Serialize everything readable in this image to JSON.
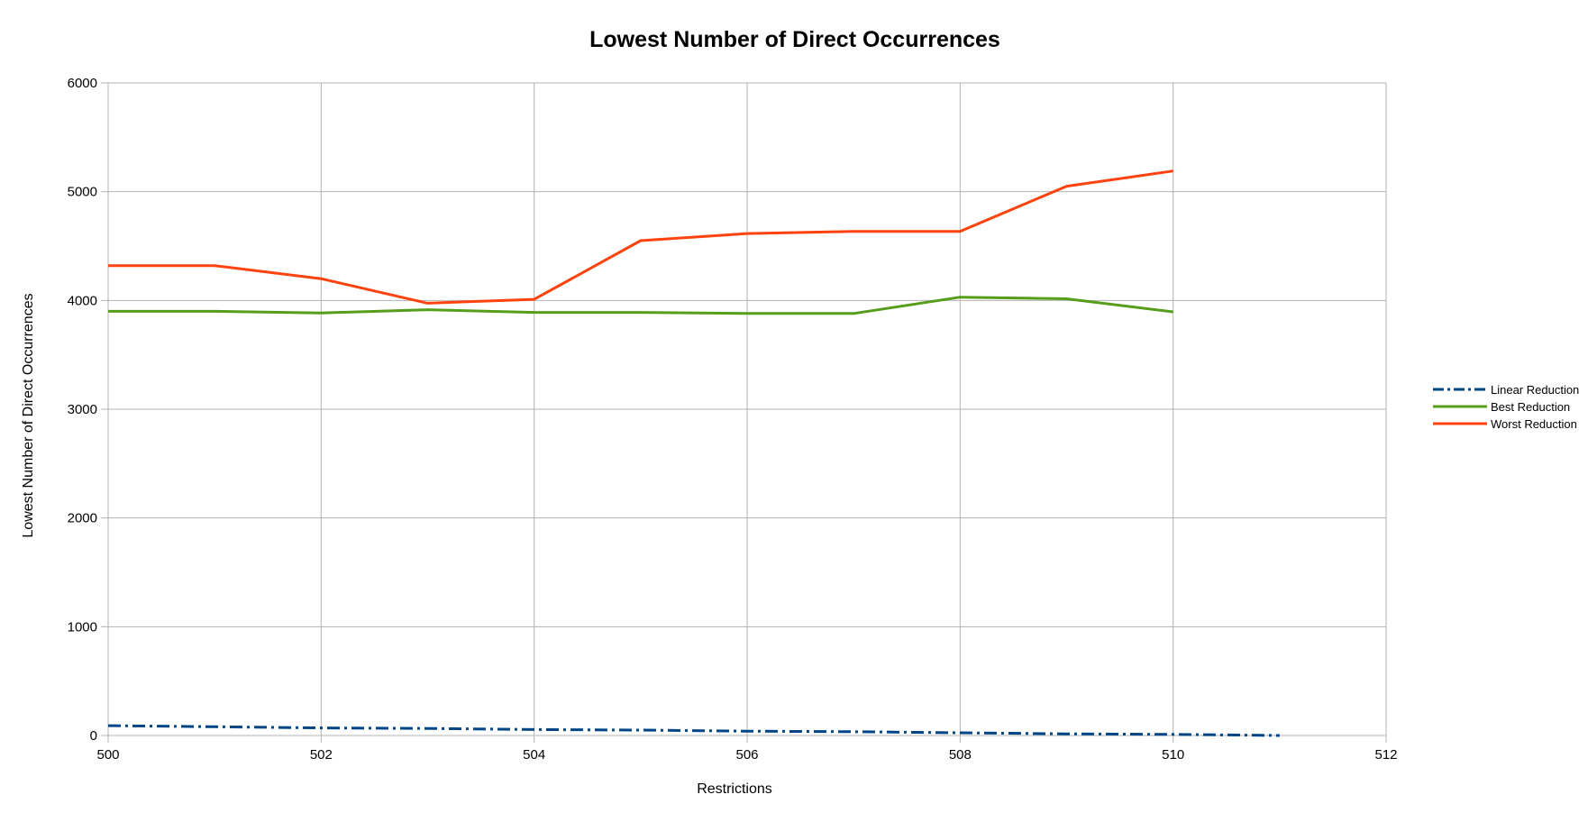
{
  "chart_data": {
    "type": "line",
    "title": "Lowest Number of Direct Occurrences",
    "xlabel": "Restrictions",
    "ylabel": "Lowest Number of Direct Occurrences",
    "xlim": [
      500,
      512
    ],
    "ylim": [
      0,
      6000
    ],
    "x_ticks": [
      500,
      502,
      504,
      506,
      508,
      510,
      512
    ],
    "y_ticks": [
      0,
      1000,
      2000,
      3000,
      4000,
      5000,
      6000
    ],
    "grid": true,
    "legend_position": "right",
    "series": [
      {
        "name": "Linear Reduction",
        "color": "#004586",
        "style": "dash-dot",
        "x": [
          500,
          501,
          502,
          503,
          504,
          505,
          506,
          507,
          508,
          509,
          510,
          511
        ],
        "y": [
          90,
          80,
          70,
          65,
          55,
          50,
          40,
          35,
          25,
          15,
          10,
          0
        ]
      },
      {
        "name": "Best Reduction",
        "color": "#579d1c",
        "style": "solid",
        "x": [
          500,
          501,
          502,
          503,
          504,
          505,
          506,
          507,
          508,
          509,
          510
        ],
        "y": [
          3900,
          3900,
          3885,
          3915,
          3890,
          3890,
          3880,
          3880,
          4030,
          4015,
          3895
        ]
      },
      {
        "name": "Worst Reduction",
        "color": "#ff420e",
        "style": "solid",
        "x": [
          500,
          501,
          502,
          503,
          504,
          505,
          506,
          507,
          508,
          509,
          510
        ],
        "y": [
          4320,
          4320,
          4200,
          3975,
          4010,
          4550,
          4615,
          4635,
          4635,
          5050,
          5190
        ]
      }
    ]
  }
}
